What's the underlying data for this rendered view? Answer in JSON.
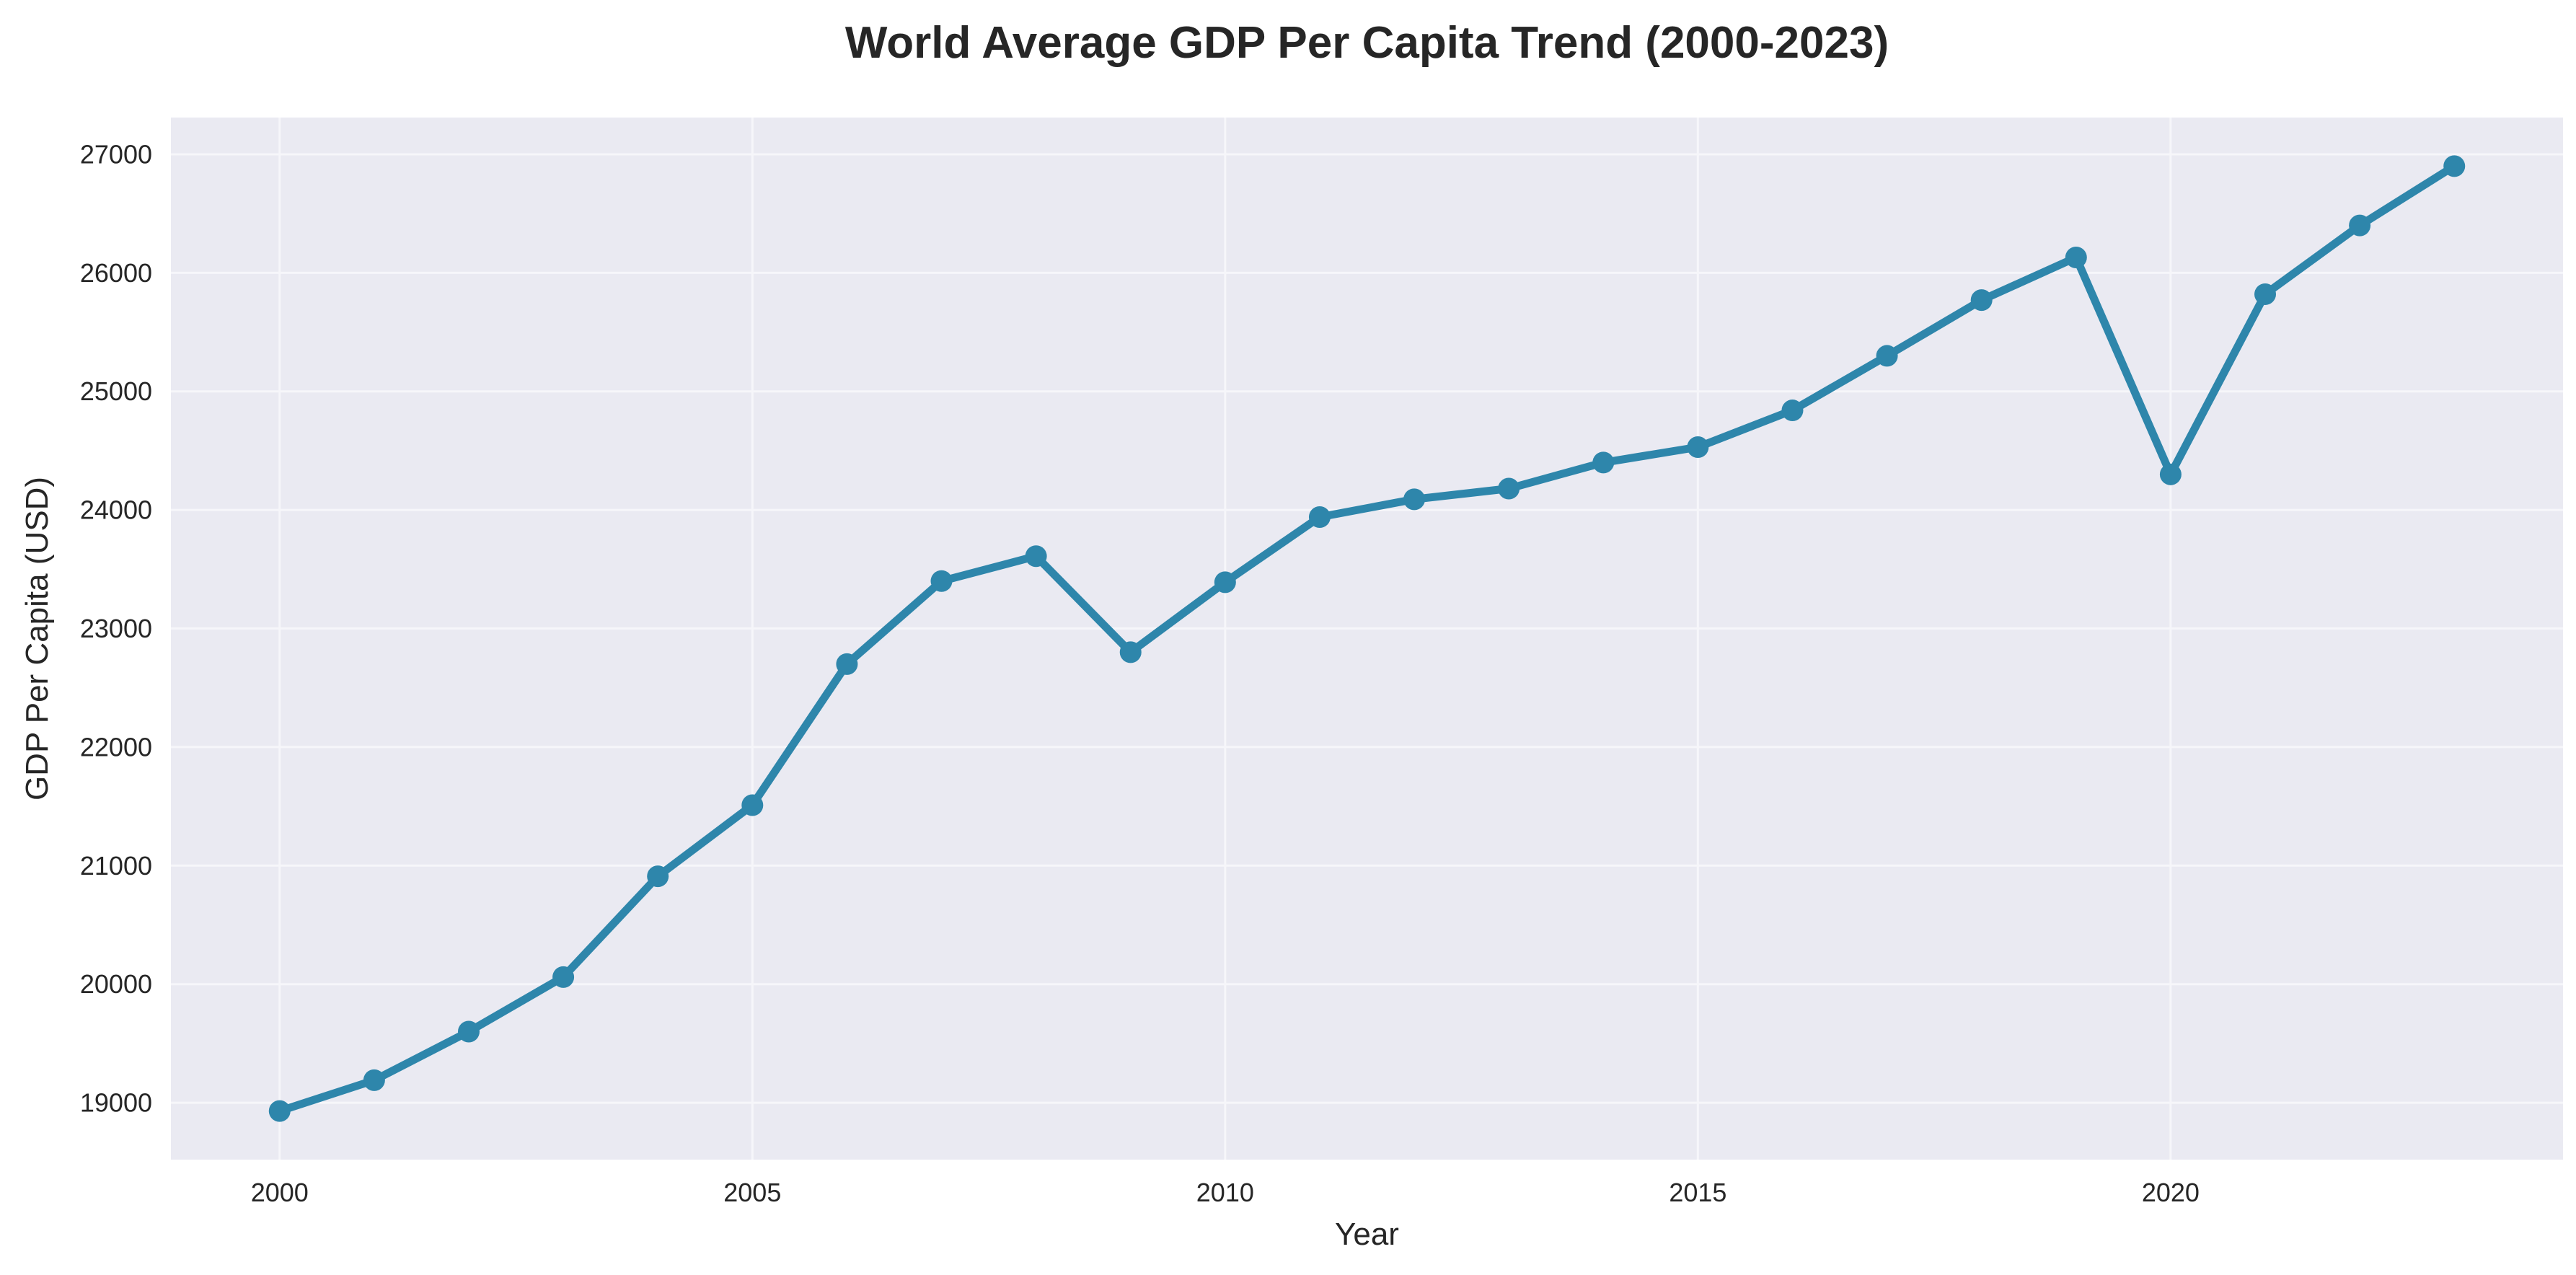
{
  "chart_data": {
    "type": "line",
    "title": "World Average GDP Per Capita Trend (2000-2023)",
    "xlabel": "Year",
    "ylabel": "GDP Per Capita (USD)",
    "x": [
      2000,
      2001,
      2002,
      2003,
      2004,
      2005,
      2006,
      2007,
      2008,
      2009,
      2010,
      2011,
      2012,
      2013,
      2014,
      2015,
      2016,
      2017,
      2018,
      2019,
      2020,
      2021,
      2022,
      2023
    ],
    "series": [
      {
        "values": [
          18930,
          19190,
          19600,
          20060,
          20910,
          21510,
          22700,
          23400,
          23610,
          22800,
          23390,
          23940,
          24090,
          24180,
          24400,
          24530,
          24840,
          25300,
          25770,
          26130,
          24300,
          25820,
          26400,
          26900
        ],
        "color": "#2e86ab"
      }
    ],
    "xlim": [
      1998.85,
      2024.15
    ],
    "ylim": [
      18520,
      27310
    ],
    "xticks": [
      "2000",
      "2005",
      "2010",
      "2015",
      "2020"
    ],
    "yticks": [
      "19000",
      "20000",
      "21000",
      "22000",
      "23000",
      "24000",
      "25000",
      "26000",
      "27000"
    ],
    "grid": true,
    "plot_background": "#eaeaf2",
    "grid_color": "#f6f6fa"
  }
}
